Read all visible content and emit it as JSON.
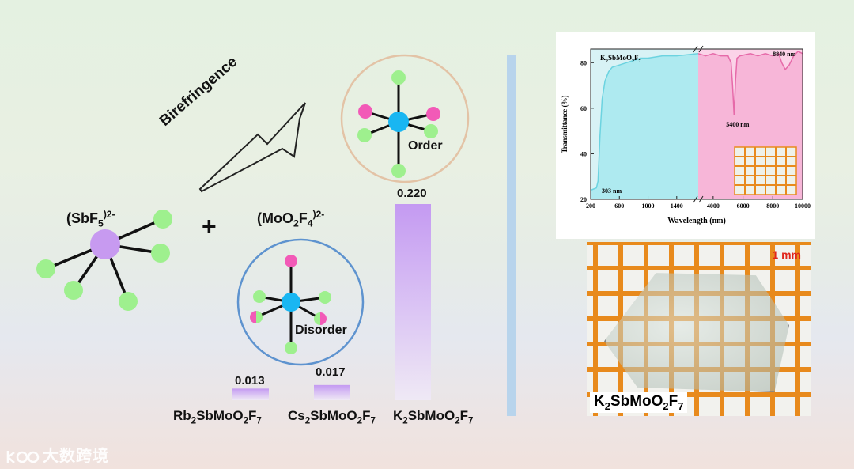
{
  "labels": {
    "birefringence": "Birefringence",
    "sbf5_main": "(SbF",
    "sbf5_sub": "5",
    "sbf5_sup": ")2-",
    "plus": "+",
    "moo2f4_main": "(MoO",
    "moo2f4_sub1": "2",
    "moo2f4_mid": "F",
    "moo2f4_sub2": "4",
    "moo2f4_sup": ")2-",
    "order": "Order",
    "disorder": "Disorder"
  },
  "bars": [
    {
      "value": "0.013",
      "n": 0.013,
      "name": [
        "Rb",
        "2",
        "SbMoO",
        "2",
        "F",
        "7"
      ]
    },
    {
      "value": "0.017",
      "n": 0.017,
      "name": [
        "Cs",
        "2",
        "SbMoO",
        "2",
        "F",
        "7"
      ]
    },
    {
      "value": "0.220",
      "n": 0.22,
      "name": [
        "K",
        "2",
        "SbMoO",
        "2",
        "F",
        "7"
      ]
    }
  ],
  "colors": {
    "sb": "#c79af0",
    "mo": "#19b6f2",
    "f": "#9ef08e",
    "o": "#f25ab7",
    "order_ring": "#e3c3a6",
    "disorder_ring": "#5e93cf",
    "bar": "#c49af2",
    "divider": "#b8d4ec",
    "grid": "#e88a1c"
  },
  "chart_data": {
    "type": "line",
    "title_parts": [
      "K",
      "2",
      "SbMoO",
      "2",
      "F",
      "7"
    ],
    "xlabel": "Wavelength (nm)",
    "ylabel": "Transmittance (%)",
    "segments": [
      {
        "x_ticks": [
          200,
          600,
          1000,
          1400
        ],
        "xlim": [
          200,
          1700
        ]
      },
      {
        "x_ticks": [
          4000,
          6000,
          8000,
          10000
        ],
        "xlim": [
          3000,
          10000
        ]
      }
    ],
    "y_ticks": [
      20,
      40,
      60,
      80
    ],
    "ylim": [
      20,
      86
    ],
    "segment1": {
      "x": [
        200,
        280,
        303,
        330,
        360,
        400,
        450,
        500,
        600,
        700,
        800,
        900,
        1000,
        1200,
        1400,
        1700
      ],
      "y": [
        24,
        25,
        28,
        48,
        64,
        72,
        76,
        78,
        79,
        80,
        81,
        82,
        82,
        83,
        83,
        84
      ]
    },
    "segment2": {
      "x": [
        3000,
        3500,
        4000,
        4500,
        5000,
        5200,
        5300,
        5400,
        5500,
        5600,
        5800,
        6500,
        7000,
        7500,
        8000,
        8400,
        8600,
        8840,
        9100,
        9400,
        9700,
        10000
      ],
      "y": [
        84,
        83,
        84,
        83,
        83,
        80,
        70,
        57,
        72,
        82,
        83,
        84,
        83,
        84,
        83,
        84,
        80,
        77,
        79,
        83,
        85,
        84
      ]
    },
    "annotations": [
      "303 nm",
      "5400 nm",
      "8840 nm"
    ]
  },
  "photo": {
    "scale_label": "1 mm",
    "label": [
      "K",
      "2",
      "SbMoO",
      "2",
      "F",
      "7"
    ]
  },
  "watermark": "大数跨境"
}
